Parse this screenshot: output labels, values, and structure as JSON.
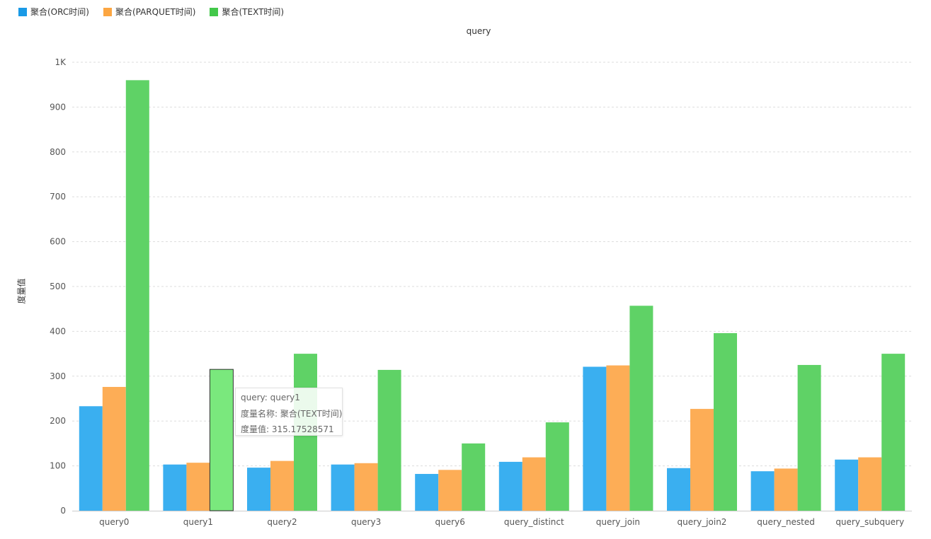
{
  "chart_data": {
    "type": "bar",
    "title": "query",
    "ylabel": "度量值",
    "xlabel": "",
    "ylim": [
      0,
      1000
    ],
    "yticks": [
      0,
      100,
      200,
      300,
      400,
      500,
      600,
      700,
      800,
      900,
      1000
    ],
    "ytick_labels": [
      "0",
      "100",
      "200",
      "300",
      "400",
      "500",
      "600",
      "700",
      "800",
      "900",
      "1K"
    ],
    "grid": true,
    "legend_position": "top-left",
    "categories": [
      "query0",
      "query1",
      "query2",
      "query3",
      "query6",
      "query_distinct",
      "query_join",
      "query_join2",
      "query_nested",
      "query_subquery"
    ],
    "series": [
      {
        "name": "聚合(ORC时间)",
        "color": "#3aaff0",
        "values": [
          233,
          103,
          96,
          103,
          82,
          109,
          321,
          95,
          88,
          114
        ]
      },
      {
        "name": "聚合(PARQUET时间)",
        "color": "#fdad56",
        "values": [
          276,
          107,
          111,
          106,
          91,
          119,
          324,
          227,
          94,
          119
        ]
      },
      {
        "name": "聚合(TEXT时间)",
        "color": "#5fd266",
        "values": [
          960,
          315.17528571,
          350,
          314,
          150,
          197,
          457,
          396,
          325,
          350
        ]
      }
    ]
  },
  "tooltip": {
    "line1": "query: query1",
    "line2": "度量名称: 聚合(TEXT时间)",
    "line3": "度量值: 315.17528571",
    "highlight_category": 1,
    "highlight_series": 2,
    "highlight_color": "#7ae87d"
  }
}
